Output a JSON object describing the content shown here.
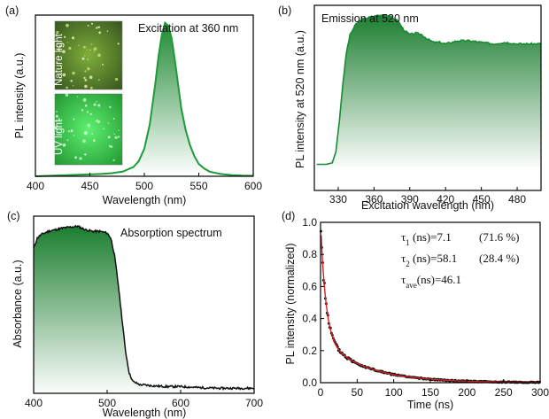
{
  "colors": {
    "green": "#1f9a3a",
    "green_dark": "#1a7a2e",
    "fit_red": "#d42020",
    "data_black": "#111111",
    "inset_nature": "#2f5a1f",
    "inset_uv": "#2cc84a"
  },
  "chart_data": [
    {
      "id": "a",
      "type": "line",
      "panel_label": "(a)",
      "annotation": "Excitation at 360 nm",
      "xlabel": "Wavelength (nm)",
      "ylabel": "PL intensity (a.u.)",
      "xlim": [
        400,
        600
      ],
      "ylim": [
        0,
        1.05
      ],
      "xticks": [
        400,
        450,
        500,
        550,
        600
      ],
      "tick_labels": [
        "400",
        "450",
        "500",
        "550",
        "600"
      ],
      "fill": "gradient",
      "inset": {
        "top_label": "Nature light",
        "bottom_label": "UV light"
      },
      "series": [
        {
          "x": [
            400,
            440,
            460,
            470,
            480,
            490,
            495,
            500,
            505,
            510,
            513,
            516,
            519,
            522,
            525,
            528,
            531,
            534,
            538,
            542,
            546,
            550,
            555,
            560,
            570,
            580,
            590,
            600
          ],
          "y": [
            0.0,
            0.01,
            0.015,
            0.02,
            0.03,
            0.06,
            0.1,
            0.18,
            0.34,
            0.6,
            0.78,
            0.92,
            1.0,
            0.98,
            0.9,
            0.76,
            0.6,
            0.44,
            0.3,
            0.2,
            0.13,
            0.08,
            0.05,
            0.03,
            0.015,
            0.008,
            0.004,
            0.003
          ]
        }
      ]
    },
    {
      "id": "b",
      "type": "area",
      "panel_label": "(b)",
      "annotation": "Emission at 520 nm",
      "xlabel": "Excitation wavelength (nm)",
      "ylabel": "PL intensity at 520 nm (a.u.)",
      "xlim": [
        310,
        500
      ],
      "ylim": [
        0,
        1.05
      ],
      "xticks": [
        330,
        360,
        390,
        420,
        450,
        480
      ],
      "tick_labels": [
        "330",
        "360",
        "390",
        "420",
        "450",
        "480"
      ],
      "fill": "gradient",
      "series": [
        {
          "x": [
            312,
            320,
            325,
            328,
            331,
            334,
            337,
            340,
            345,
            350,
            360,
            370,
            380,
            385,
            390,
            395,
            400,
            405,
            410,
            415,
            420,
            430,
            440,
            450,
            460,
            470,
            480,
            490,
            500
          ],
          "y": [
            0.02,
            0.02,
            0.03,
            0.1,
            0.3,
            0.55,
            0.75,
            0.86,
            0.93,
            0.96,
            0.98,
            0.99,
            0.95,
            0.89,
            0.86,
            0.87,
            0.86,
            0.83,
            0.81,
            0.81,
            0.8,
            0.82,
            0.82,
            0.81,
            0.8,
            0.81,
            0.8,
            0.8,
            0.8
          ]
        }
      ]
    },
    {
      "id": "c",
      "type": "area",
      "panel_label": "(c)",
      "annotation": "Absorption spectrum",
      "xlabel": "Wavelength (nm)",
      "ylabel": "Absorbance (a.u.)",
      "xlim": [
        400,
        700
      ],
      "ylim": [
        0,
        1.05
      ],
      "xticks": [
        400,
        500,
        600,
        700
      ],
      "tick_labels": [
        "400",
        "500",
        "600",
        "700"
      ],
      "fill": "gradient",
      "series": [
        {
          "x": [
            400,
            405,
            410,
            420,
            440,
            460,
            470,
            480,
            490,
            500,
            505,
            510,
            515,
            520,
            525,
            530,
            535,
            540,
            545,
            550,
            560,
            580,
            600,
            620,
            650,
            680,
            700
          ],
          "y": [
            0.86,
            0.92,
            0.94,
            0.96,
            0.98,
            0.99,
            0.97,
            0.96,
            0.96,
            0.95,
            0.92,
            0.82,
            0.65,
            0.45,
            0.25,
            0.12,
            0.07,
            0.06,
            0.05,
            0.05,
            0.045,
            0.04,
            0.04,
            0.035,
            0.03,
            0.03,
            0.03
          ]
        }
      ]
    },
    {
      "id": "d",
      "type": "scatter",
      "panel_label": "(d)",
      "xlabel": "Time (ns)",
      "ylabel": "PL intensity (normalized)",
      "xlim": [
        0,
        300
      ],
      "ylim": [
        0,
        1.0
      ],
      "xticks": [
        0,
        50,
        100,
        150,
        200,
        250,
        300
      ],
      "tick_labels": [
        "0",
        "50",
        "100",
        "150",
        "200",
        "250",
        "300"
      ],
      "yticks": [
        0.0,
        0.2,
        0.4,
        0.6,
        0.8,
        1.0
      ],
      "ytick_labels": [
        "0.0",
        "0.2",
        "0.4",
        "0.6",
        "0.8",
        "1.0"
      ],
      "fit": {
        "a1": 0.716,
        "tau1": 7.1,
        "a2": 0.284,
        "tau2": 58.1
      },
      "annotations": [
        {
          "sym": "τ",
          "sub": "1",
          "text": " (ns)=7.1",
          "pct": "(71.6 %)"
        },
        {
          "sym": "τ",
          "sub": "2",
          "text": " (ns)=58.1",
          "pct": "(28.4 %)"
        },
        {
          "sym": "τ",
          "sub": "ave",
          "text": "(ns)=46.1",
          "pct": ""
        }
      ]
    }
  ]
}
